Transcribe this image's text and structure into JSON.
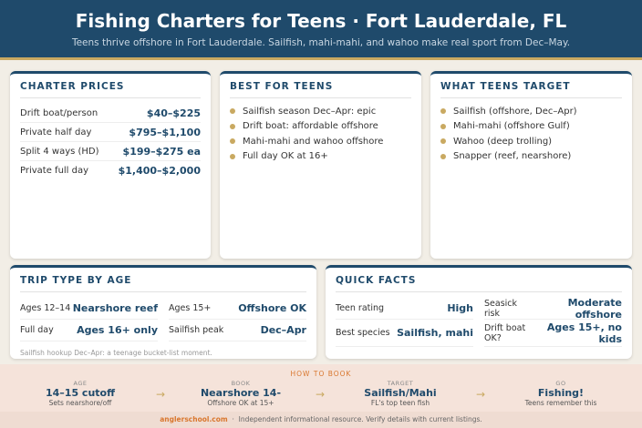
{
  "header": {
    "title": "Fishing Charters for Teens · Fort Lauderdale, FL",
    "subtitle": "Teens thrive offshore in Fort Lauderdale. Sailfish, mahi-mahi, and wahoo make real sport from Dec–May."
  },
  "charter_prices": {
    "title": "CHARTER PRICES",
    "rows": [
      {
        "label": "Drift boat/person",
        "value": "$40–$225"
      },
      {
        "label": "Private half day",
        "value": "$795–$1,100"
      },
      {
        "label": "Split 4 ways (HD)",
        "value": "$199–$275 ea"
      },
      {
        "label": "Private full day",
        "value": "$1,400–$2,000"
      }
    ]
  },
  "best_for_teens": {
    "title": "BEST FOR TEENS",
    "items": [
      "Sailfish season Dec–Apr: epic",
      "Drift boat: affordable offshore",
      "Mahi-mahi and wahoo offshore",
      "Full day OK at 16+"
    ]
  },
  "what_teens_target": {
    "title": "WHAT TEENS TARGET",
    "items": [
      "Sailfish (offshore, Dec–Apr)",
      "Mahi-mahi (offshore Gulf)",
      "Wahoo (deep trolling)",
      "Snapper (reef, nearshore)"
    ]
  },
  "trip_type_by_age": {
    "title": "TRIP TYPE BY AGE",
    "items": [
      {
        "label": "Ages 12–14",
        "value": "Nearshore reef"
      },
      {
        "label": "Ages 15+",
        "value": "Offshore OK"
      },
      {
        "label": "Full day",
        "value": "Ages 16+ only"
      },
      {
        "label": "Sailfish peak",
        "value": "Dec–Apr"
      }
    ],
    "note": "Sailfish hookup Dec–Apr: a teenage bucket-list moment."
  },
  "quick_facts": {
    "title": "QUICK FACTS",
    "items": [
      {
        "label": "Teen rating",
        "value": "High"
      },
      {
        "label": "Seasick risk",
        "value": "Moderate offshore"
      },
      {
        "label": "Best species",
        "value": "Sailfish, mahi"
      },
      {
        "label": "Drift boat OK?",
        "value": "Ages 15+, no kids"
      }
    ]
  },
  "how_to_book": {
    "title": "HOW TO BOOK",
    "steps": [
      {
        "label": "AGE",
        "value": "14–15 cutoff",
        "note": "Sets nearshore/off"
      },
      {
        "label": "BOOK",
        "value": "Nearshore 14-",
        "note": "Offshore OK at 15+"
      },
      {
        "label": "TARGET",
        "value": "Sailfish/Mahi",
        "note": "FL's top teen fish"
      },
      {
        "label": "GO",
        "value": "Fishing!",
        "note": "Teens remember this"
      }
    ]
  },
  "footer": {
    "site": "anglerschool.com",
    "text": "Independent informational resource. Verify details with current listings."
  }
}
